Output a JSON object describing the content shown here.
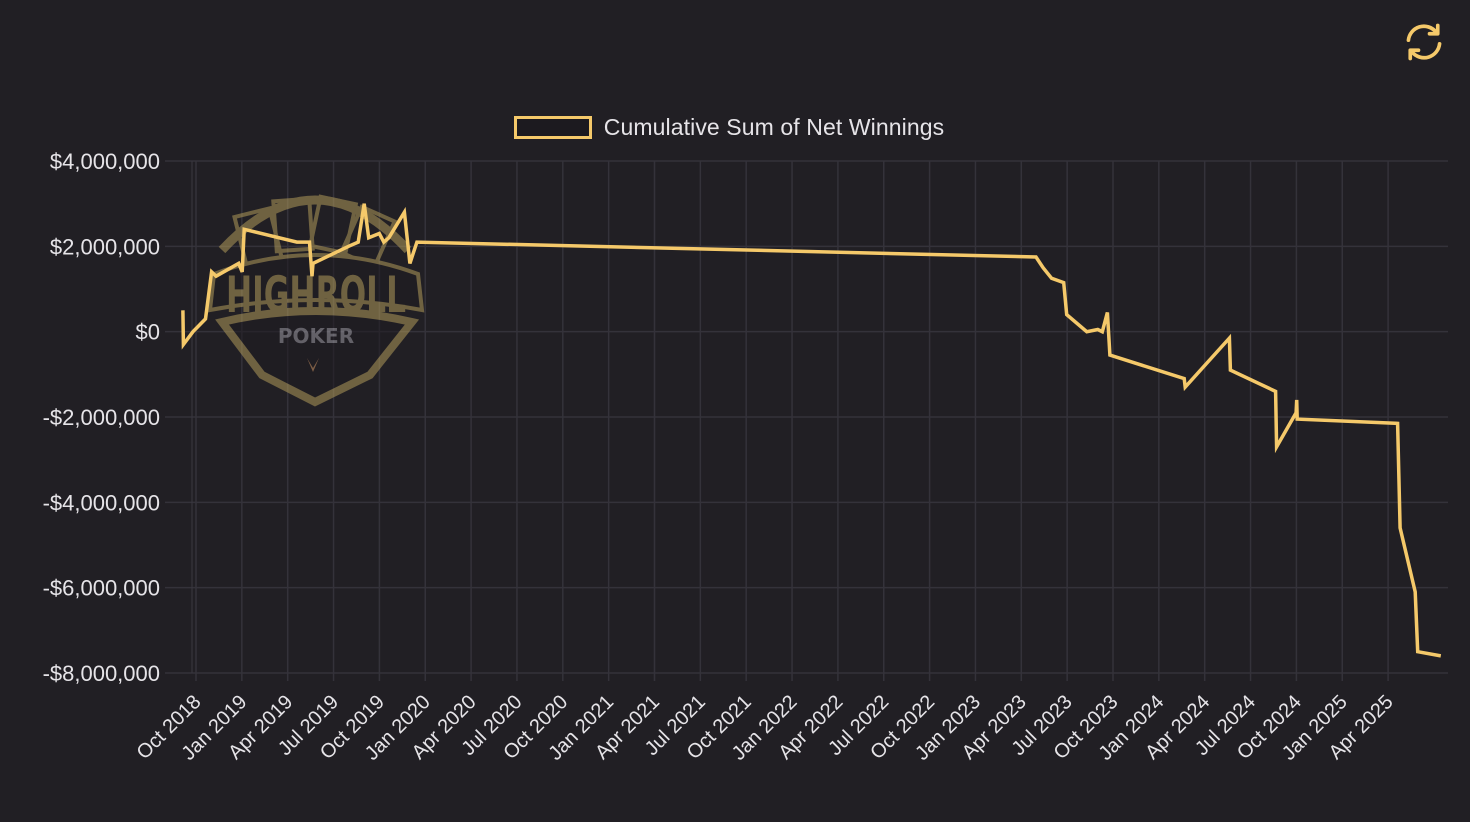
{
  "toolbar": {
    "refresh_icon": "refresh-icon",
    "accent_color": "#f5c96a"
  },
  "legend": {
    "label": "Cumulative Sum of Net Winnings",
    "color": "#f5c96a"
  },
  "watermark": {
    "title": "HIGHROLL",
    "subtitle": "POKER"
  },
  "chart_data": {
    "type": "line",
    "title": "",
    "xlabel": "",
    "ylabel": "",
    "legend": [
      "Cumulative Sum of Net Winnings"
    ],
    "legend_position": "top-center",
    "grid": true,
    "ylim": [
      -8000000,
      4000000
    ],
    "y_ticks": [
      4000000,
      2000000,
      0,
      -2000000,
      -4000000,
      -6000000,
      -8000000
    ],
    "y_tick_labels": [
      "$4,000,000",
      "$2,000,000",
      "$0",
      "-$2,000,000",
      "-$4,000,000",
      "-$6,000,000",
      "-$8,000,000"
    ],
    "x_tick_labels": [
      "Oct 2018",
      "Jan 2019",
      "Apr 2019",
      "Jul 2019",
      "Oct 2019",
      "Jan 2020",
      "Apr 2020",
      "Jul 2020",
      "Oct 2020",
      "Jan 2021",
      "Apr 2021",
      "Jul 2021",
      "Oct 2021",
      "Jan 2022",
      "Apr 2022",
      "Jul 2022",
      "Oct 2022",
      "Jan 2023",
      "Apr 2023",
      "Jul 2023",
      "Oct 2023",
      "Jan 2024",
      "Apr 2024",
      "Jul 2024",
      "Oct 2024",
      "Jan 2025",
      "Apr 2025"
    ],
    "series": [
      {
        "name": "Cumulative Sum of Net Winnings",
        "color": "#f5c96a",
        "points": [
          [
            "2018-09-05",
            500000
          ],
          [
            "2018-09-06",
            -300000
          ],
          [
            "2018-09-25",
            0
          ],
          [
            "2018-10-20",
            300000
          ],
          [
            "2018-11-01",
            1400000
          ],
          [
            "2018-11-10",
            1300000
          ],
          [
            "2018-12-10",
            1500000
          ],
          [
            "2018-12-25",
            1600000
          ],
          [
            "2019-01-01",
            1400000
          ],
          [
            "2019-01-05",
            2400000
          ],
          [
            "2019-04-20",
            2100000
          ],
          [
            "2019-05-15",
            2100000
          ],
          [
            "2019-05-20",
            1300000
          ],
          [
            "2019-05-22",
            1600000
          ],
          [
            "2019-08-01",
            2000000
          ],
          [
            "2019-08-20",
            2100000
          ],
          [
            "2019-09-01",
            3000000
          ],
          [
            "2019-09-10",
            2200000
          ],
          [
            "2019-10-01",
            2300000
          ],
          [
            "2019-10-10",
            2100000
          ],
          [
            "2019-10-20",
            2200000
          ],
          [
            "2019-11-20",
            2800000
          ],
          [
            "2019-12-01",
            1600000
          ],
          [
            "2019-12-15",
            2100000
          ],
          [
            "2023-05-01",
            1750000
          ],
          [
            "2023-05-15",
            1500000
          ],
          [
            "2023-06-01",
            1250000
          ],
          [
            "2023-06-25",
            1150000
          ],
          [
            "2023-07-01",
            400000
          ],
          [
            "2023-08-10",
            0
          ],
          [
            "2023-09-01",
            50000
          ],
          [
            "2023-09-10",
            0
          ],
          [
            "2023-09-20",
            450000
          ],
          [
            "2023-09-25",
            -550000
          ],
          [
            "2024-02-20",
            -1100000
          ],
          [
            "2024-02-22",
            -1300000
          ],
          [
            "2024-05-20",
            -150000
          ],
          [
            "2024-05-22",
            -900000
          ],
          [
            "2024-08-20",
            -1400000
          ],
          [
            "2024-08-22",
            -2700000
          ],
          [
            "2024-09-30",
            -1900000
          ],
          [
            "2024-10-01",
            -1600000
          ],
          [
            "2024-10-02",
            -2050000
          ],
          [
            "2025-04-20",
            -2150000
          ],
          [
            "2025-04-25",
            -4600000
          ],
          [
            "2025-05-25",
            -6100000
          ],
          [
            "2025-05-30",
            -7500000
          ],
          [
            "2025-07-15",
            -7600000
          ]
        ]
      }
    ]
  }
}
